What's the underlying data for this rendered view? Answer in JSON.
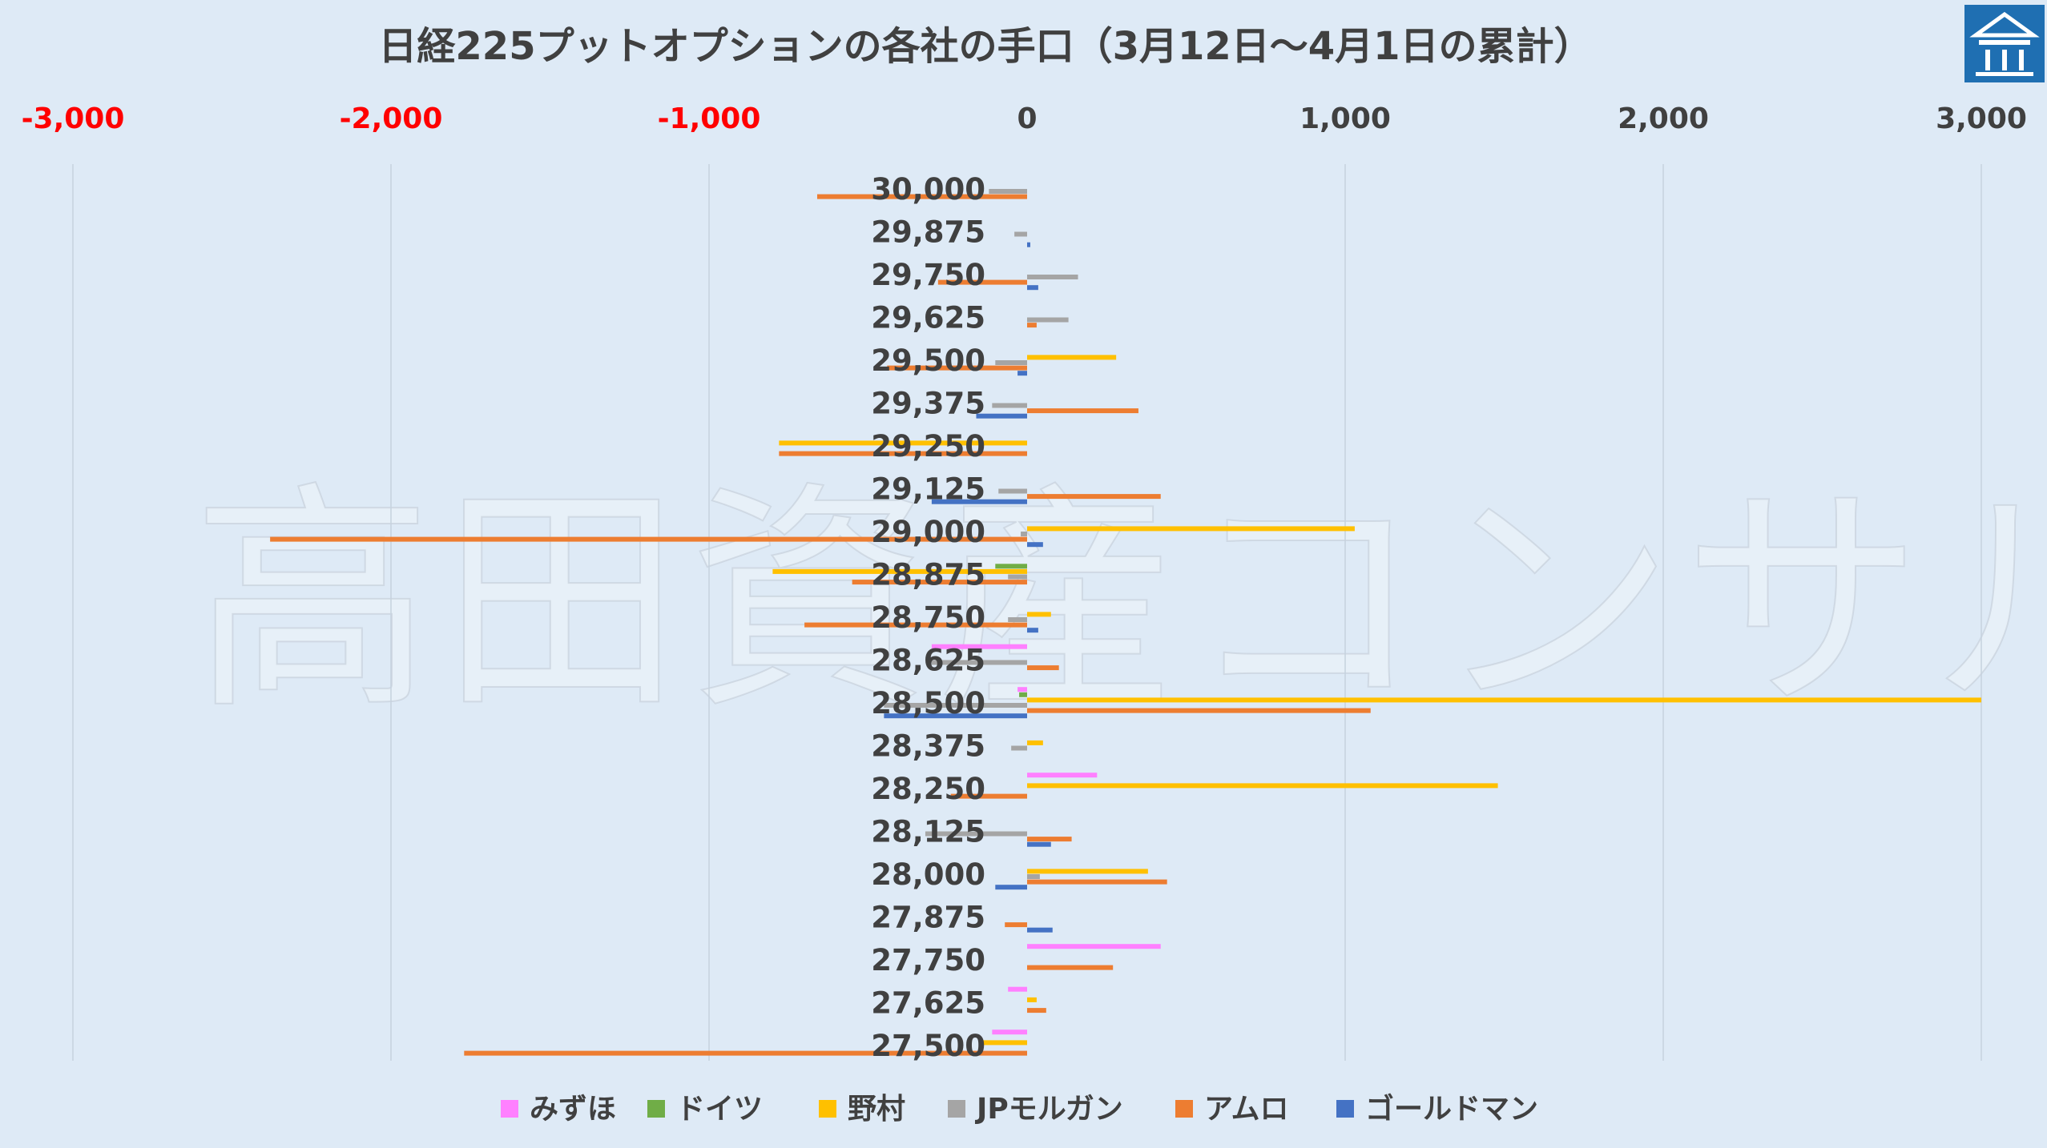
{
  "chart_data": {
    "type": "bar",
    "orientation": "horizontal",
    "title": "日経225プットオプションの各社の手口（3月12日～4月1日の累計）",
    "xlim": [
      -3000,
      3000
    ],
    "xticks": [
      -3000,
      -2000,
      -1000,
      0,
      1000,
      2000,
      3000
    ],
    "xtick_labels": [
      "-3,000",
      "-2,000",
      "-1,000",
      "0",
      "1,000",
      "2,000",
      "3,000"
    ],
    "negative_tick_color": "#ff0000",
    "positive_tick_color": "#404040",
    "grid": "vertical",
    "legend_position": "bottom",
    "categories": [
      "30,000",
      "29,875",
      "29,750",
      "29,625",
      "29,500",
      "29,375",
      "29,250",
      "29,125",
      "29,000",
      "28,875",
      "28,750",
      "28,625",
      "28,500",
      "28,375",
      "28,250",
      "28,125",
      "28,000",
      "27,875",
      "27,750",
      "27,625",
      "27,500"
    ],
    "series": [
      {
        "name": "みずほ",
        "color": "#ff80ff",
        "values": [
          0,
          0,
          0,
          0,
          0,
          0,
          0,
          0,
          0,
          0,
          0,
          -300,
          -30,
          0,
          220,
          0,
          0,
          0,
          420,
          -60,
          -110
        ]
      },
      {
        "name": "ドイツ",
        "color": "#70ad47",
        "values": [
          0,
          0,
          0,
          0,
          0,
          0,
          0,
          0,
          0,
          -100,
          0,
          0,
          -25,
          0,
          0,
          0,
          0,
          0,
          0,
          0,
          0
        ]
      },
      {
        "name": "野村",
        "color": "#ffc000",
        "values": [
          0,
          0,
          0,
          0,
          280,
          0,
          -780,
          0,
          1030,
          -800,
          75,
          0,
          3000,
          50,
          1480,
          0,
          380,
          0,
          0,
          30,
          -140
        ]
      },
      {
        "name": "JPモルガン",
        "color": "#a5a5a5",
        "values": [
          -120,
          -40,
          160,
          130,
          -100,
          -110,
          0,
          -90,
          -20,
          -60,
          -60,
          -300,
          -450,
          -50,
          0,
          -320,
          40,
          0,
          0,
          0,
          0
        ]
      },
      {
        "name": "アムロ",
        "color": "#ed7d31",
        "values": [
          -660,
          0,
          -280,
          30,
          -440,
          350,
          -780,
          420,
          -2380,
          -550,
          -700,
          100,
          1080,
          0,
          -240,
          140,
          440,
          -70,
          270,
          60,
          -1770
        ]
      },
      {
        "name": "ゴールドマン",
        "color": "#4472c4",
        "values": [
          0,
          10,
          35,
          0,
          -30,
          -160,
          0,
          -300,
          50,
          0,
          35,
          0,
          -450,
          0,
          0,
          75,
          -100,
          80,
          0,
          0,
          0
        ]
      }
    ]
  },
  "watermark": "高田資産コンサル",
  "logo": {
    "name": "takata-logo-icon",
    "color": "#1f6fb2"
  }
}
